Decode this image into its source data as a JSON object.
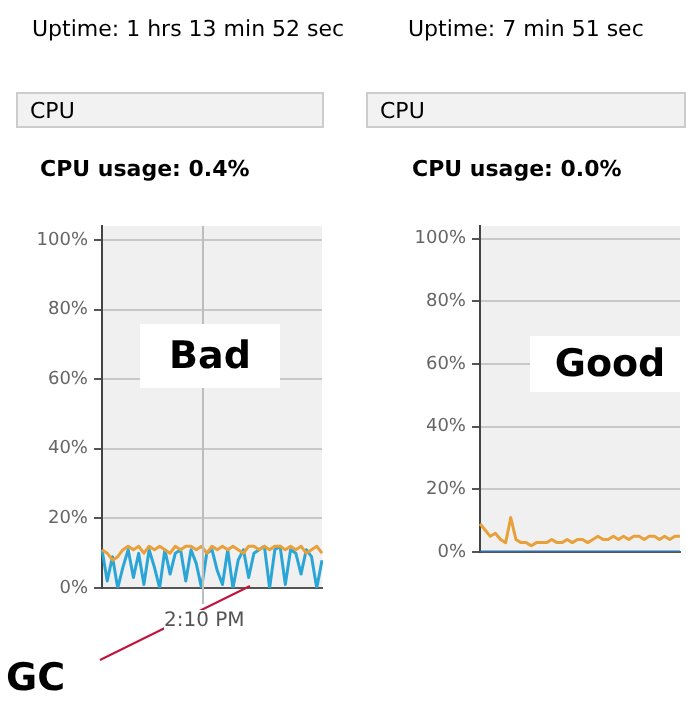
{
  "chart_data": [
    {
      "type": "line",
      "title": "Uptime: 1 hrs 13 min 52 sec",
      "subtitle": "CPU",
      "annotations": [
        "CPU usage: 0.4%",
        "Bad",
        "GC",
        "2:10 PM"
      ],
      "categories": [
        null,
        null,
        null,
        null,
        null,
        null,
        null,
        null,
        null,
        null,
        null,
        null,
        null,
        null,
        null,
        null,
        null,
        null,
        null,
        null,
        null,
        null,
        null,
        null,
        null,
        null,
        null,
        null,
        null,
        null,
        null,
        null,
        null,
        null,
        null,
        null,
        null,
        null,
        null,
        null,
        null,
        null,
        null
      ],
      "series": [
        {
          "color": "#e8a03a",
          "values": [
            11,
            10,
            8,
            9,
            11,
            12,
            11,
            12,
            10,
            12,
            11,
            12,
            11,
            10,
            12,
            11,
            12,
            12,
            11,
            12,
            10,
            12,
            11,
            12,
            11,
            12,
            11,
            10,
            12,
            12,
            11,
            12,
            11,
            12,
            12,
            11,
            12,
            11,
            12,
            10,
            11,
            12,
            10
          ]
        },
        {
          "color": "#2aa5d6",
          "values": [
            11,
            2,
            9,
            0,
            6,
            11,
            3,
            10,
            1,
            11,
            6,
            0,
            11,
            4,
            10,
            11,
            2,
            11,
            7,
            0,
            10,
            11,
            5,
            1,
            11,
            0,
            8,
            11,
            3,
            10,
            11,
            12,
            0,
            11,
            12,
            1,
            11,
            10,
            4,
            11,
            9,
            0,
            8
          ]
        }
      ],
      "ylim": [
        0,
        104
      ],
      "yticks": [
        {
          "value": 0,
          "label": "0%"
        },
        {
          "value": 20,
          "label": "20%"
        },
        {
          "value": 40,
          "label": "40%"
        },
        {
          "value": 60,
          "label": "60%"
        },
        {
          "value": 80,
          "label": "80%"
        },
        {
          "value": 100,
          "label": "100%"
        }
      ],
      "tick_labels": "y",
      "grid": "y",
      "marker": "none",
      "line_style": "solid"
    },
    {
      "type": "line",
      "title": "Uptime: 7 min 51 sec",
      "subtitle": "CPU",
      "annotations": [
        "CPU usage: 0.0%",
        "Good"
      ],
      "categories": [
        null,
        null,
        null,
        null,
        null,
        null,
        null,
        null,
        null,
        null,
        null,
        null,
        null,
        null,
        null,
        null,
        null,
        null,
        null,
        null,
        null,
        null,
        null,
        null,
        null,
        null,
        null,
        null,
        null,
        null,
        null,
        null,
        null,
        null,
        null,
        null,
        null,
        null,
        null,
        null
      ],
      "series": [
        {
          "color": "#e8a03a",
          "values": [
            9,
            7,
            5,
            6,
            4,
            3,
            11,
            4,
            3,
            3,
            2,
            3,
            3,
            3,
            4,
            3,
            3,
            4,
            3,
            4,
            4,
            3,
            4,
            5,
            4,
            4,
            5,
            4,
            5,
            4,
            5,
            5,
            4,
            5,
            5,
            4,
            5,
            4,
            5,
            5
          ]
        },
        {
          "color": "#2f6fa8",
          "values": [
            0,
            0,
            0,
            0,
            0,
            0,
            0,
            0,
            0,
            0,
            0,
            0,
            0,
            0,
            0,
            0,
            0,
            0,
            0,
            0,
            0,
            0,
            0,
            0,
            0,
            0,
            0,
            0,
            0,
            0,
            0,
            0,
            0,
            0,
            0,
            0,
            0,
            0,
            0,
            0
          ]
        }
      ],
      "ylim": [
        0,
        104
      ],
      "yticks": [
        {
          "value": 0,
          "label": "0%"
        },
        {
          "value": 20,
          "label": "20%"
        },
        {
          "value": 40,
          "label": "40%"
        },
        {
          "value": 60,
          "label": "60%"
        },
        {
          "value": 80,
          "label": "80%"
        },
        {
          "value": 100,
          "label": "100%"
        }
      ],
      "tick_labels": "y",
      "grid": "y",
      "marker": "none",
      "line_style": "solid"
    }
  ]
}
